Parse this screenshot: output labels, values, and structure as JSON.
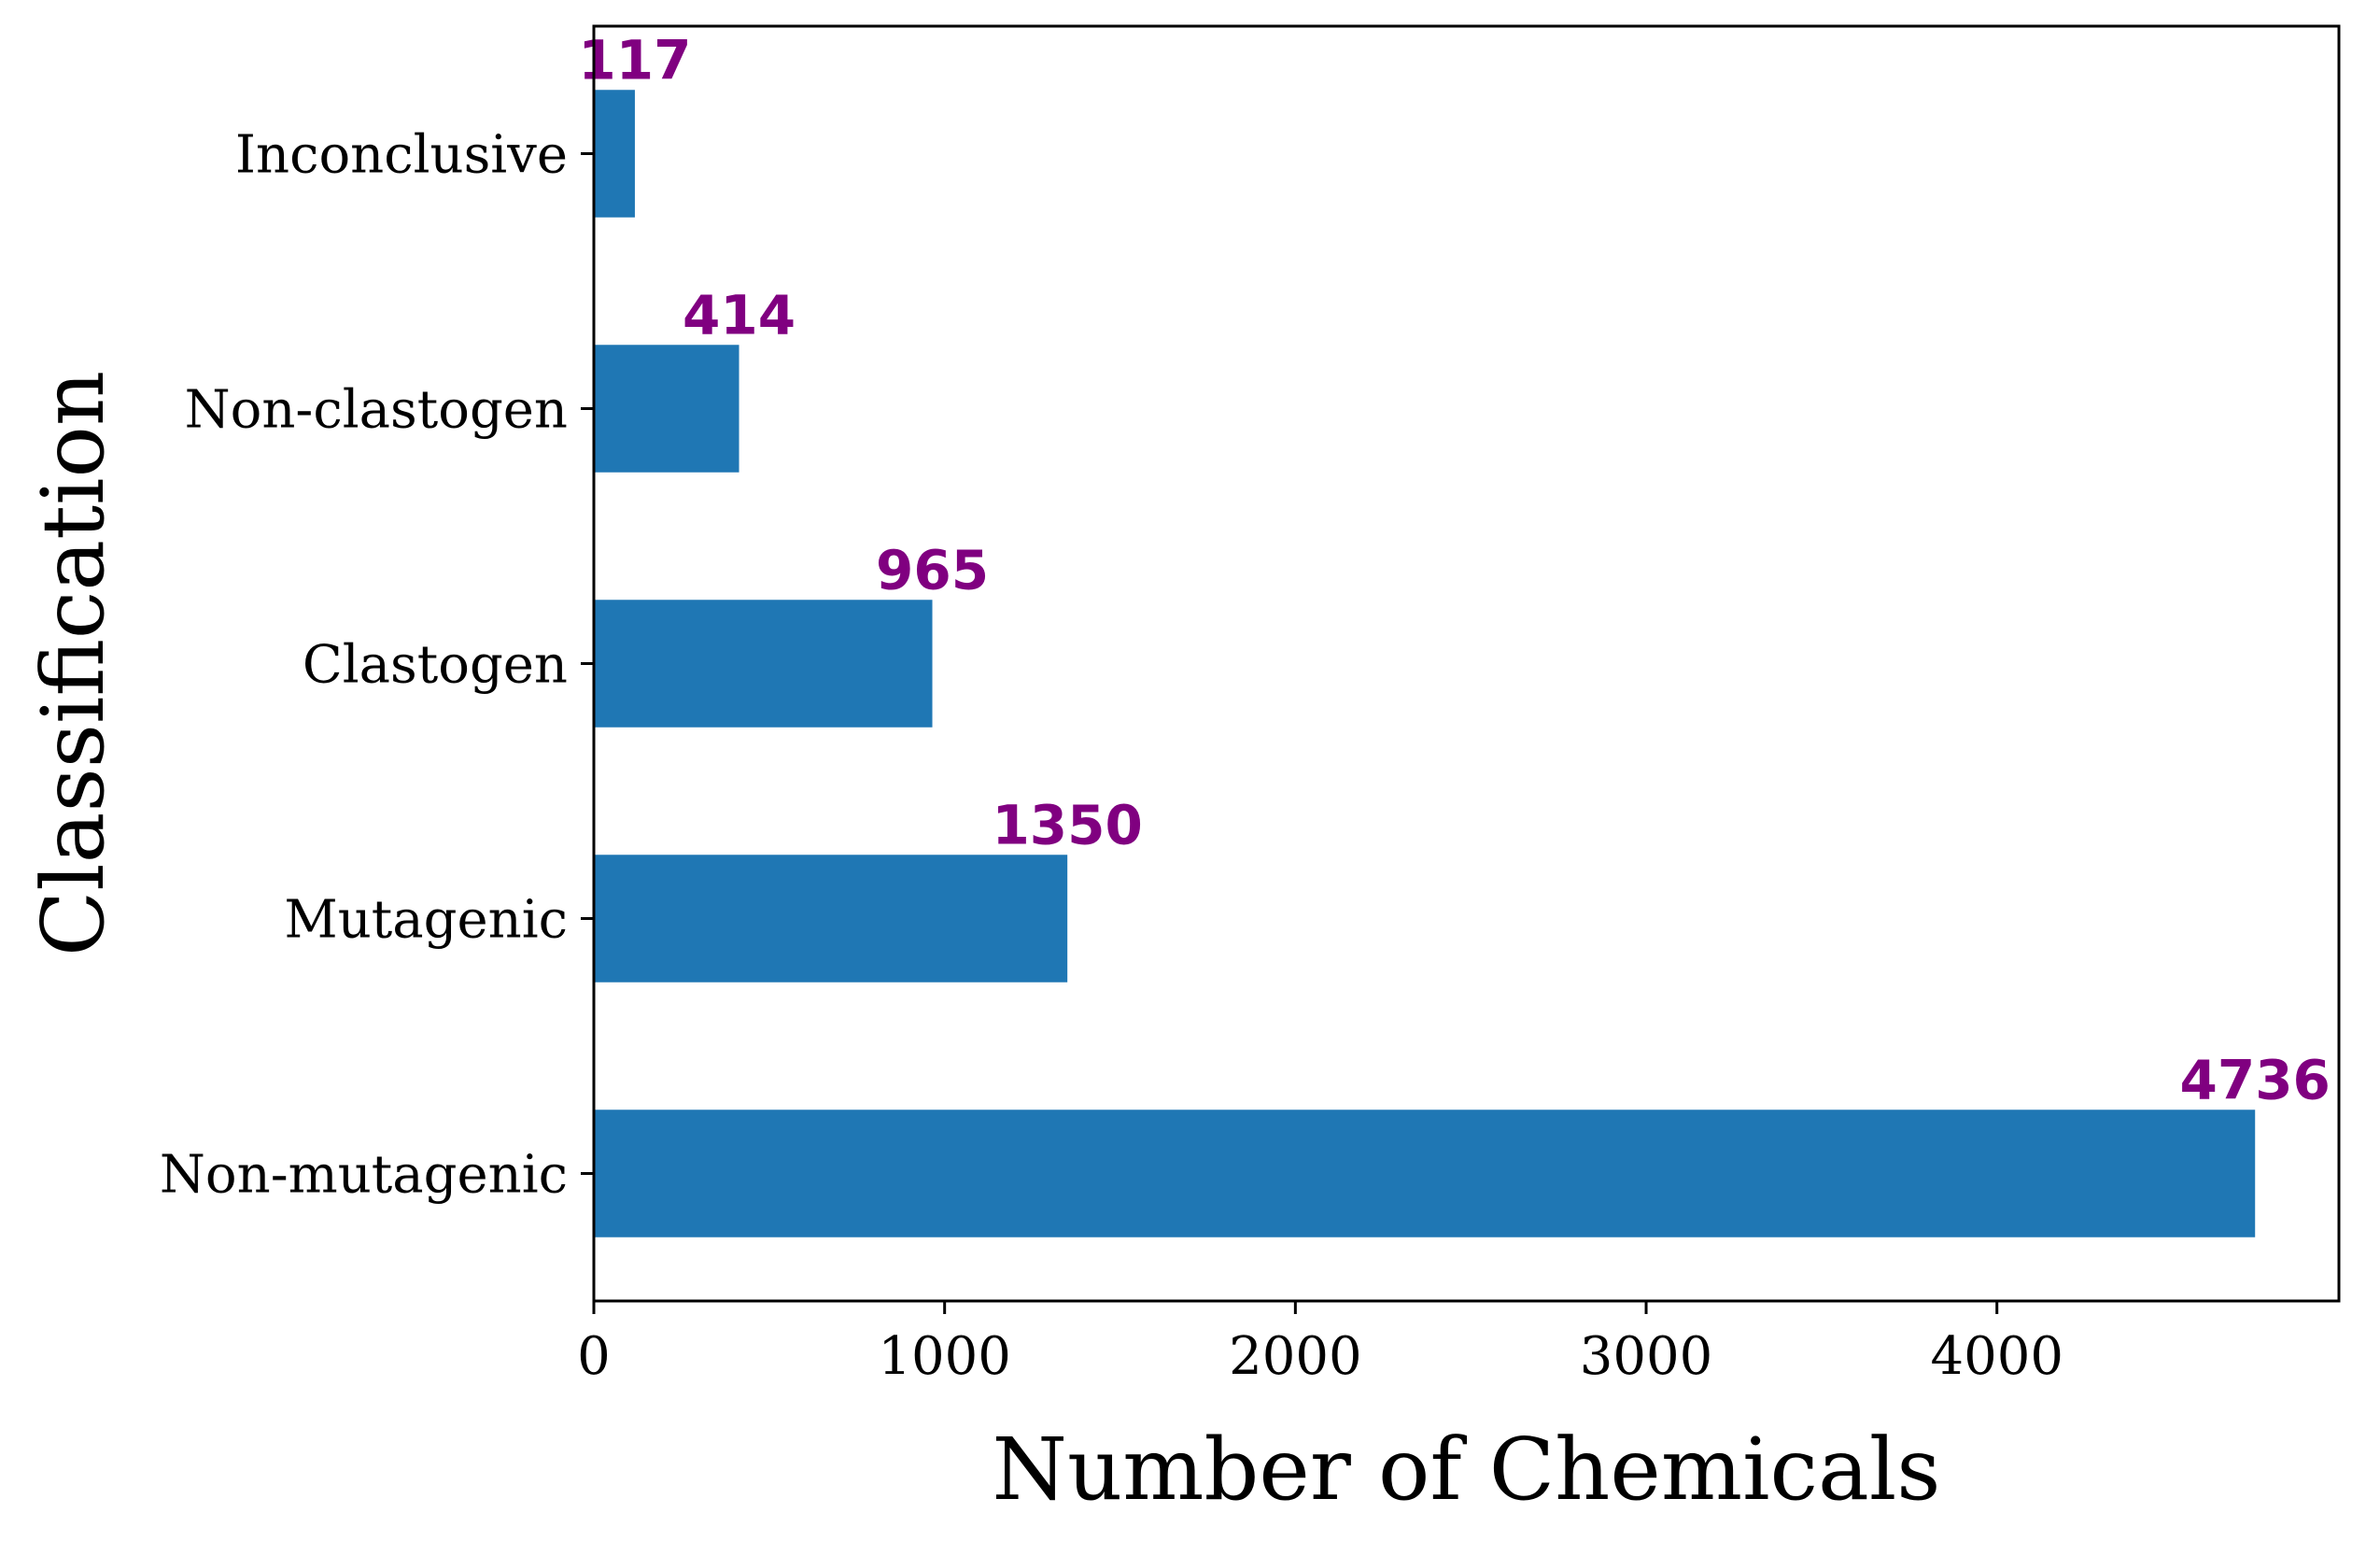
{
  "chart_data": {
    "type": "bar",
    "orientation": "horizontal",
    "categories": [
      "Inconclusive",
      "Non-clastogen",
      "Clastogen",
      "Mutagenic",
      "Non-mutagenic"
    ],
    "values": [
      117,
      414,
      965,
      1350,
      4736
    ],
    "data_labels": [
      "117",
      "414",
      "965",
      "1350",
      "4736"
    ],
    "xlabel": "Number of Chemicals",
    "ylabel": "Classification",
    "xlim": [
      0,
      4975
    ],
    "xticks": [
      0,
      1000,
      2000,
      3000,
      4000
    ],
    "xtick_labels": [
      "0",
      "1000",
      "2000",
      "3000",
      "4000"
    ],
    "grid": false,
    "bar_color": "#1f77b4",
    "label_color": "#800080"
  }
}
